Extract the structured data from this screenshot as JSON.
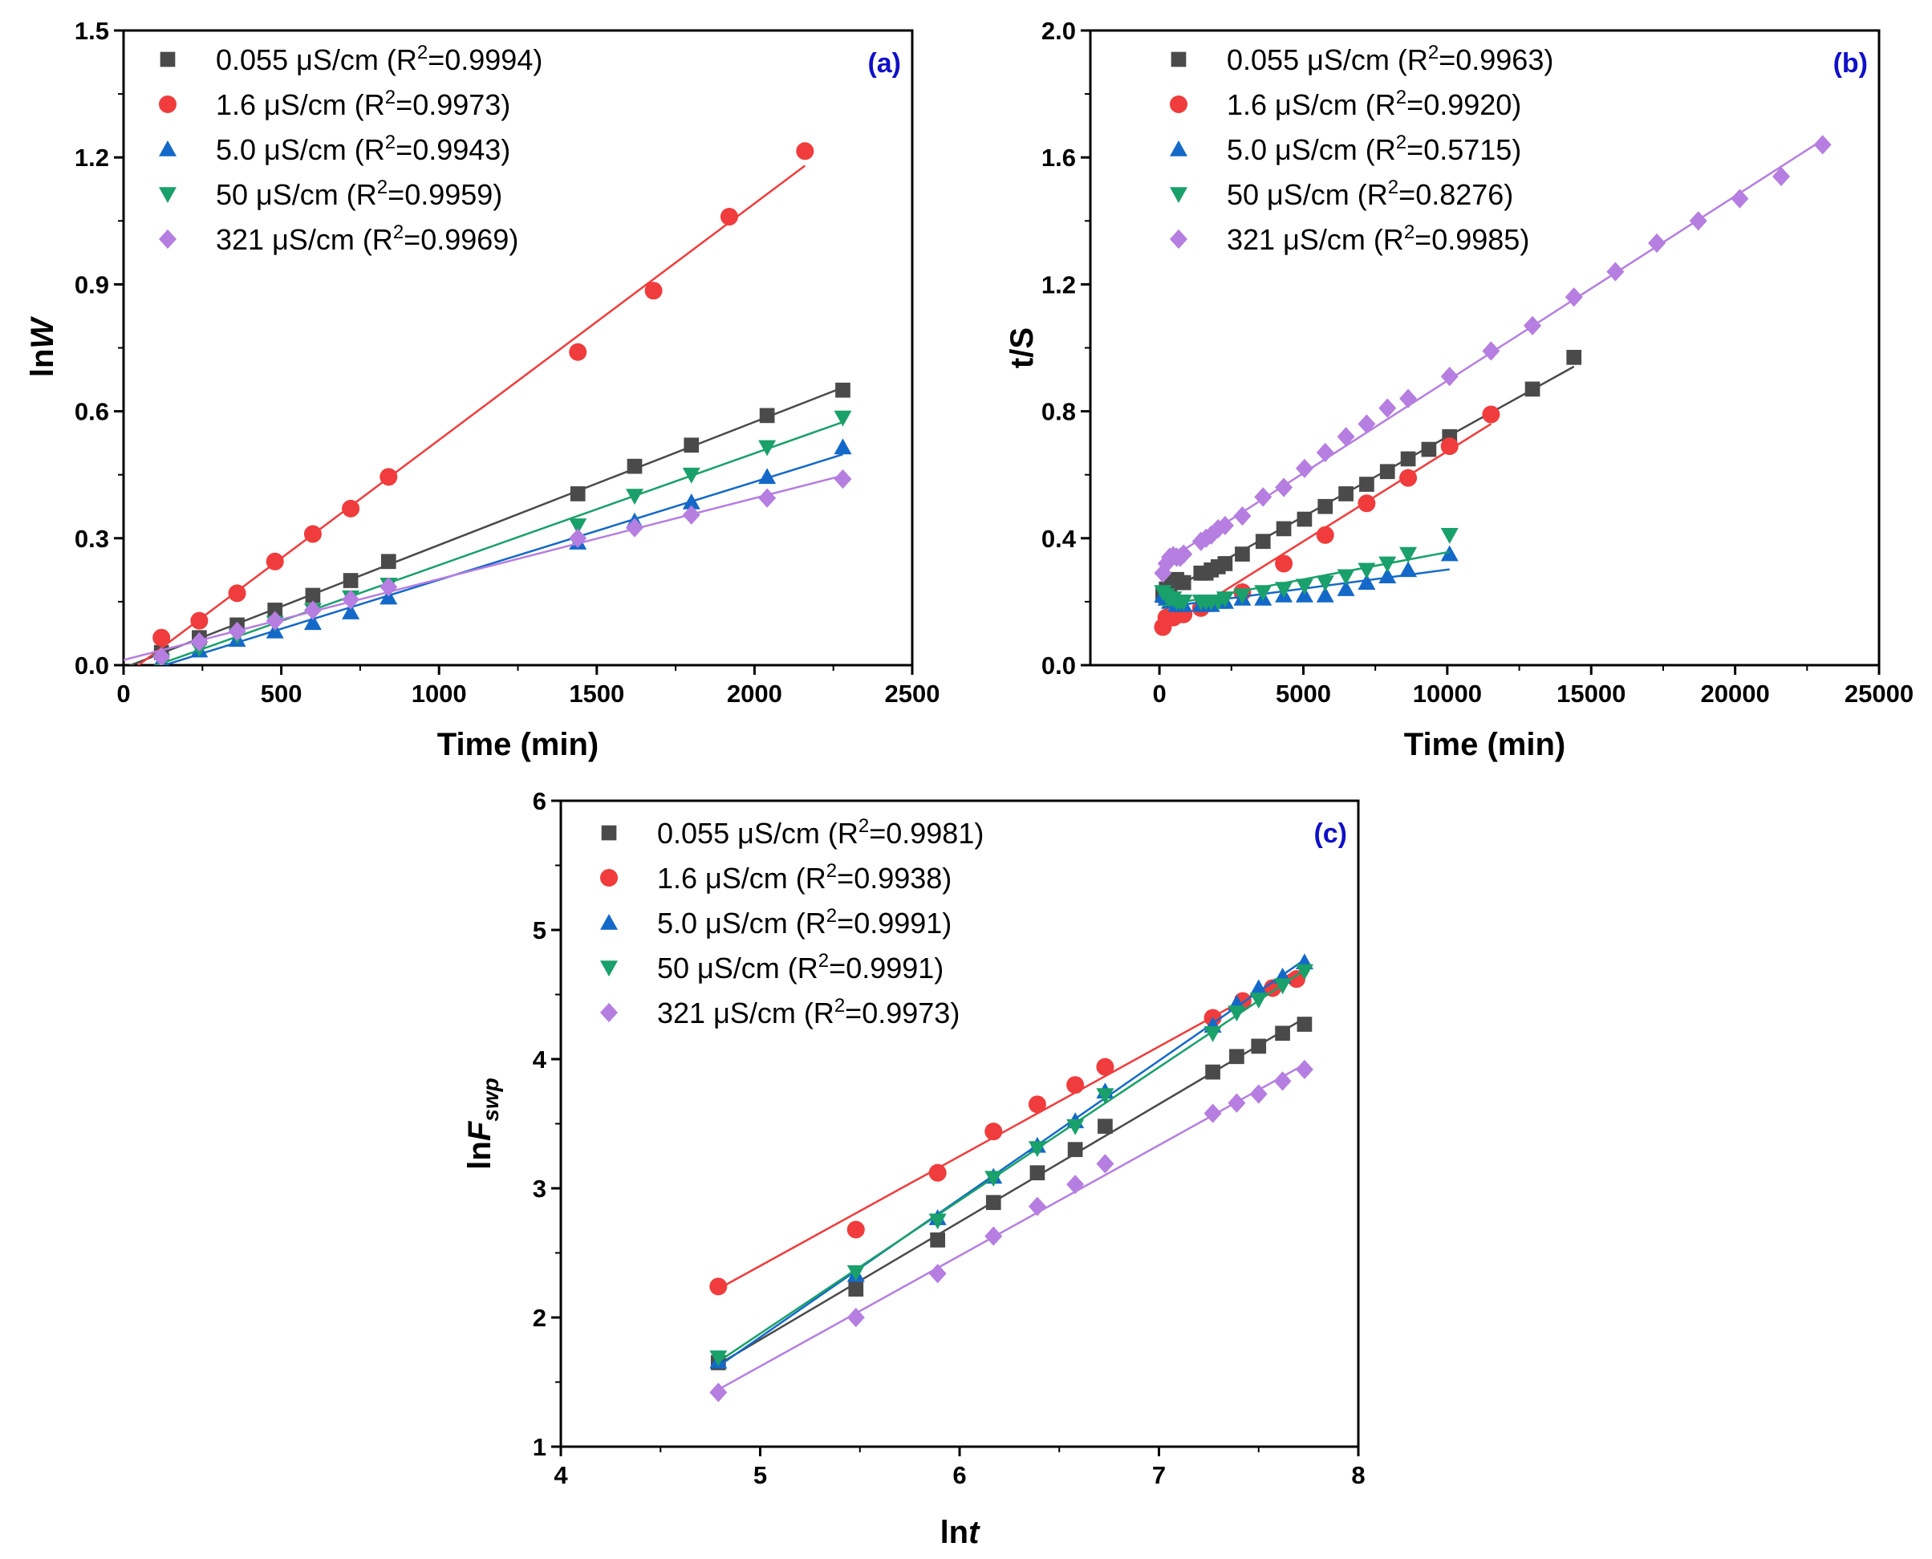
{
  "colors": {
    "0.055": "#4a4a4a",
    "1.6": "#f03c3c",
    "5.0": "#1469c8",
    "50": "#1aa06a",
    "321": "#b57ee0",
    "panel_label": "#1010c8"
  },
  "chart_data": [
    {
      "type": "scatter",
      "panel": "(a)",
      "xlabel": "Time (min)",
      "ylabel_prefix": "ln",
      "ylabel_italic": "W",
      "xlim": [
        0,
        2500
      ],
      "ylim": [
        0,
        1.5
      ],
      "xticks": [
        0,
        500,
        1000,
        1500,
        2000,
        2500
      ],
      "yticks": [
        "0.0",
        "0.3",
        "0.6",
        "0.9",
        "1.2",
        "1.5"
      ],
      "series": [
        {
          "name": "0.055 μS/cm",
          "r2": "0.9994",
          "marker": "square",
          "color": "#4a4a4a",
          "x": [
            120,
            240,
            360,
            480,
            600,
            720,
            840,
            1440,
            1620,
            1800,
            2040,
            2280
          ],
          "y": [
            0.03,
            0.065,
            0.095,
            0.13,
            0.165,
            0.2,
            0.245,
            0.405,
            0.47,
            0.52,
            0.59,
            0.65
          ]
        },
        {
          "name": "1.6 μS/cm",
          "r2": "0.9973",
          "marker": "circle",
          "color": "#f03c3c",
          "x": [
            120,
            240,
            360,
            480,
            600,
            720,
            840,
            1440,
            1680,
            1920,
            2160
          ],
          "y": [
            0.065,
            0.105,
            0.17,
            0.245,
            0.31,
            0.37,
            0.445,
            0.74,
            0.885,
            1.06,
            1.215
          ]
        },
        {
          "name": "5.0 μS/cm",
          "r2": "0.9943",
          "marker": "triangle-up",
          "color": "#1469c8",
          "x": [
            120,
            240,
            360,
            480,
            600,
            720,
            840,
            1440,
            1620,
            1800,
            2040,
            2280
          ],
          "y": [
            0.01,
            0.035,
            0.06,
            0.08,
            0.1,
            0.125,
            0.16,
            0.29,
            0.34,
            0.385,
            0.445,
            0.515
          ]
        },
        {
          "name": "50 μS/cm",
          "r2": "0.9959",
          "marker": "triangle-down",
          "color": "#1aa06a",
          "x": [
            120,
            240,
            360,
            480,
            600,
            720,
            840,
            1440,
            1620,
            1800,
            2040,
            2280
          ],
          "y": [
            0.01,
            0.04,
            0.07,
            0.1,
            0.13,
            0.16,
            0.19,
            0.33,
            0.4,
            0.45,
            0.515,
            0.585
          ]
        },
        {
          "name": "321 μS/cm",
          "r2": "0.9969",
          "marker": "diamond",
          "color": "#b57ee0",
          "x": [
            120,
            240,
            360,
            480,
            600,
            720,
            840,
            1440,
            1620,
            1800,
            2040,
            2280
          ],
          "y": [
            0.02,
            0.055,
            0.08,
            0.105,
            0.13,
            0.155,
            0.185,
            0.3,
            0.325,
            0.355,
            0.395,
            0.44
          ]
        }
      ]
    },
    {
      "type": "scatter",
      "panel": "(b)",
      "xlabel": "Time (min)",
      "ylabel_prefix": "t/S",
      "ylabel_italic": "",
      "xlim": [
        -2400,
        25000
      ],
      "ylim": [
        0,
        2.0
      ],
      "xticks": [
        0,
        5000,
        10000,
        15000,
        20000,
        25000
      ],
      "yticks": [
        "0.0",
        "0.4",
        "0.8",
        "1.2",
        "1.6",
        "2.0"
      ],
      "series": [
        {
          "name": "0.055 μS/cm",
          "r2": "0.9963",
          "marker": "square",
          "color": "#4a4a4a",
          "x": [
            120,
            240,
            360,
            480,
            600,
            720,
            840,
            1440,
            1620,
            1800,
            2040,
            2280,
            2880,
            3600,
            4320,
            5040,
            5760,
            6480,
            7200,
            7920,
            8640,
            9360,
            10080,
            12960,
            14400
          ],
          "y": [
            0.22,
            0.24,
            0.25,
            0.26,
            0.27,
            0.26,
            0.26,
            0.29,
            0.29,
            0.3,
            0.31,
            0.32,
            0.35,
            0.39,
            0.43,
            0.46,
            0.5,
            0.54,
            0.57,
            0.61,
            0.65,
            0.68,
            0.72,
            0.87,
            0.97
          ]
        },
        {
          "name": "1.6 μS/cm",
          "r2": "0.9920",
          "marker": "circle",
          "color": "#f03c3c",
          "x": [
            120,
            240,
            480,
            720,
            840,
            1440,
            2880,
            4320,
            5760,
            7200,
            8640,
            10080,
            11520
          ],
          "y": [
            0.12,
            0.15,
            0.15,
            0.16,
            0.16,
            0.18,
            0.23,
            0.32,
            0.41,
            0.51,
            0.59,
            0.69,
            0.79
          ]
        },
        {
          "name": "5.0 μS/cm",
          "r2": "0.5715",
          "marker": "triangle-up",
          "color": "#1469c8",
          "x": [
            120,
            240,
            360,
            480,
            600,
            720,
            840,
            1440,
            1620,
            1800,
            2040,
            2280,
            2880,
            3600,
            4320,
            5040,
            5760,
            6480,
            7200,
            7920,
            8640,
            10080
          ],
          "y": [
            0.22,
            0.21,
            0.2,
            0.2,
            0.19,
            0.19,
            0.19,
            0.19,
            0.19,
            0.19,
            0.2,
            0.2,
            0.21,
            0.21,
            0.22,
            0.22,
            0.22,
            0.24,
            0.26,
            0.28,
            0.3,
            0.35
          ]
        },
        {
          "name": "50 μS/cm",
          "r2": "0.8276",
          "marker": "triangle-down",
          "color": "#1aa06a",
          "x": [
            120,
            240,
            360,
            480,
            600,
            720,
            840,
            1440,
            1620,
            1800,
            2040,
            2280,
            2880,
            3600,
            4320,
            5040,
            5760,
            6480,
            7200,
            7920,
            8640,
            10080
          ],
          "y": [
            0.23,
            0.22,
            0.21,
            0.21,
            0.2,
            0.2,
            0.2,
            0.2,
            0.2,
            0.2,
            0.2,
            0.21,
            0.22,
            0.23,
            0.24,
            0.25,
            0.26,
            0.28,
            0.3,
            0.32,
            0.35,
            0.41
          ]
        },
        {
          "name": "321 μS/cm",
          "r2": "0.9985",
          "marker": "diamond",
          "color": "#b57ee0",
          "x": [
            120,
            240,
            360,
            480,
            600,
            720,
            840,
            1440,
            1620,
            1800,
            2040,
            2280,
            2880,
            3600,
            4320,
            5040,
            5760,
            6480,
            7200,
            7920,
            8640,
            10080,
            11520,
            12960,
            14400,
            15840,
            17280,
            18720,
            20160,
            21600,
            23040
          ],
          "y": [
            0.29,
            0.32,
            0.34,
            0.345,
            0.34,
            0.34,
            0.35,
            0.39,
            0.4,
            0.41,
            0.43,
            0.44,
            0.47,
            0.53,
            0.56,
            0.62,
            0.67,
            0.72,
            0.76,
            0.81,
            0.84,
            0.91,
            0.99,
            1.07,
            1.16,
            1.24,
            1.33,
            1.4,
            1.47,
            1.54,
            1.64
          ]
        }
      ]
    },
    {
      "type": "scatter",
      "panel": "(c)",
      "xlabel_prefix": "ln",
      "xlabel_italic": "t",
      "ylabel_prefix": "ln",
      "ylabel_italic": "F",
      "ylabel_sub": "swp",
      "xlim": [
        4,
        8
      ],
      "ylim": [
        1,
        6
      ],
      "xticks": [
        4,
        5,
        6,
        7,
        8
      ],
      "yticks": [
        "1",
        "2",
        "3",
        "4",
        "5",
        "6"
      ],
      "series": [
        {
          "name": "0.055 μS/cm",
          "r2": "0.9981",
          "marker": "square",
          "color": "#4a4a4a",
          "x": [
            4.79,
            5.48,
            5.89,
            6.17,
            6.39,
            6.58,
            6.73,
            7.27,
            7.39,
            7.5,
            7.62,
            7.73
          ],
          "y": [
            1.65,
            2.22,
            2.6,
            2.89,
            3.12,
            3.3,
            3.48,
            3.9,
            4.02,
            4.1,
            4.2,
            4.27
          ]
        },
        {
          "name": "1.6 μS/cm",
          "r2": "0.9938",
          "marker": "circle",
          "color": "#f03c3c",
          "x": [
            4.79,
            5.48,
            5.89,
            6.17,
            6.39,
            6.58,
            6.73,
            7.27,
            7.42,
            7.57,
            7.69
          ],
          "y": [
            2.24,
            2.68,
            3.12,
            3.44,
            3.65,
            3.8,
            3.94,
            4.32,
            4.45,
            4.55,
            4.62
          ]
        },
        {
          "name": "5.0 μS/cm",
          "r2": "0.9991",
          "marker": "triangle-up",
          "color": "#1469c8",
          "x": [
            4.79,
            5.48,
            5.89,
            6.17,
            6.39,
            6.58,
            6.73,
            7.27,
            7.39,
            7.5,
            7.62,
            7.73
          ],
          "y": [
            1.66,
            2.33,
            2.77,
            3.09,
            3.33,
            3.52,
            3.75,
            4.26,
            4.43,
            4.55,
            4.64,
            4.75
          ]
        },
        {
          "name": "50 μS/cm",
          "r2": "0.9991",
          "marker": "triangle-down",
          "color": "#1aa06a",
          "x": [
            4.79,
            5.48,
            5.89,
            6.17,
            6.39,
            6.58,
            6.73,
            7.27,
            7.39,
            7.5,
            7.62,
            7.73
          ],
          "y": [
            1.69,
            2.35,
            2.75,
            3.08,
            3.31,
            3.48,
            3.72,
            4.2,
            4.36,
            4.46,
            4.57,
            4.68
          ]
        },
        {
          "name": "321 μS/cm",
          "r2": "0.9973",
          "marker": "diamond",
          "color": "#b57ee0",
          "x": [
            4.79,
            5.48,
            5.89,
            6.17,
            6.39,
            6.58,
            6.73,
            7.27,
            7.39,
            7.5,
            7.62,
            7.73
          ],
          "y": [
            1.42,
            2.0,
            2.34,
            2.63,
            2.86,
            3.03,
            3.19,
            3.58,
            3.66,
            3.73,
            3.83,
            3.92
          ]
        }
      ]
    }
  ]
}
